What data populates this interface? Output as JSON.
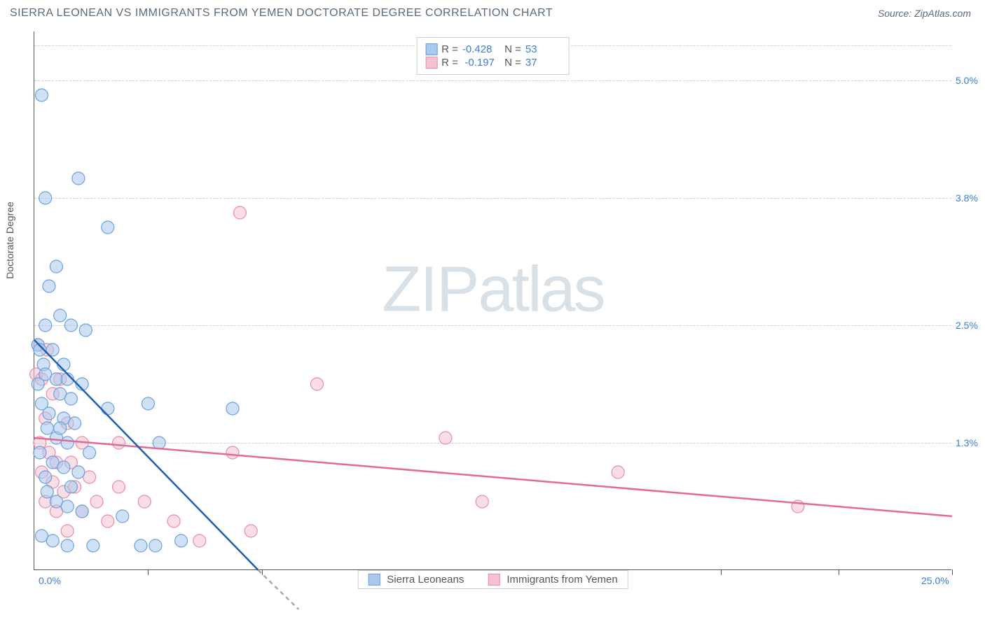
{
  "header": {
    "title": "SIERRA LEONEAN VS IMMIGRANTS FROM YEMEN DOCTORATE DEGREE CORRELATION CHART",
    "source": "Source: ZipAtlas.com"
  },
  "chart": {
    "type": "scatter",
    "ylabel": "Doctorate Degree",
    "watermark_prefix": "ZIP",
    "watermark_suffix": "atlas",
    "xlim": [
      0,
      25
    ],
    "ylim": [
      0,
      5.5
    ],
    "y_ticks": [
      {
        "v": 1.3,
        "label": "1.3%"
      },
      {
        "v": 2.5,
        "label": "2.5%"
      },
      {
        "v": 3.8,
        "label": "3.8%"
      },
      {
        "v": 5.0,
        "label": "5.0%"
      }
    ],
    "x_ticks_minor": [
      3.1,
      6.2,
      9.4,
      12.5,
      15.6,
      18.7,
      21.9,
      25.0
    ],
    "x_labels": [
      {
        "v": 0,
        "label": "0.0%"
      },
      {
        "v": 25,
        "label": "25.0%"
      }
    ],
    "background_color": "#ffffff",
    "grid_color": "#cfcfcf",
    "marker_radius": 9,
    "marker_opacity": 0.55,
    "line_width": 2.5,
    "series": [
      {
        "name": "Sierra Leoneans",
        "color_fill": "#a9c8ef",
        "color_stroke": "#6aa0de",
        "line_color": "#1c5fb3",
        "R": "-0.428",
        "N": "53",
        "trend": {
          "x1": 0,
          "y1": 2.35,
          "x2": 6.1,
          "y2": 0
        },
        "trend_ext": {
          "x1": 6.1,
          "y1": 0,
          "x2": 7.2,
          "y2": -0.4
        },
        "points": [
          [
            0.2,
            4.85
          ],
          [
            1.2,
            4.0
          ],
          [
            0.3,
            3.8
          ],
          [
            2.0,
            3.5
          ],
          [
            0.6,
            3.1
          ],
          [
            0.4,
            2.9
          ],
          [
            0.7,
            2.6
          ],
          [
            1.0,
            2.5
          ],
          [
            0.3,
            2.5
          ],
          [
            1.4,
            2.45
          ],
          [
            0.1,
            2.3
          ],
          [
            0.5,
            2.25
          ],
          [
            0.15,
            2.25
          ],
          [
            0.8,
            2.1
          ],
          [
            0.25,
            2.1
          ],
          [
            0.3,
            2.0
          ],
          [
            0.6,
            1.95
          ],
          [
            0.9,
            1.95
          ],
          [
            0.1,
            1.9
          ],
          [
            1.3,
            1.9
          ],
          [
            0.7,
            1.8
          ],
          [
            1.0,
            1.75
          ],
          [
            0.2,
            1.7
          ],
          [
            3.1,
            1.7
          ],
          [
            2.0,
            1.65
          ],
          [
            0.4,
            1.6
          ],
          [
            0.8,
            1.55
          ],
          [
            1.1,
            1.5
          ],
          [
            5.4,
            1.65
          ],
          [
            0.35,
            1.45
          ],
          [
            0.6,
            1.35
          ],
          [
            0.9,
            1.3
          ],
          [
            3.4,
            1.3
          ],
          [
            0.15,
            1.2
          ],
          [
            1.5,
            1.2
          ],
          [
            0.5,
            1.1
          ],
          [
            0.8,
            1.05
          ],
          [
            1.2,
            1.0
          ],
          [
            0.3,
            0.95
          ],
          [
            0.7,
            1.45
          ],
          [
            1.0,
            0.85
          ],
          [
            0.35,
            0.8
          ],
          [
            2.4,
            0.55
          ],
          [
            0.6,
            0.7
          ],
          [
            0.9,
            0.65
          ],
          [
            1.3,
            0.6
          ],
          [
            2.9,
            0.25
          ],
          [
            3.3,
            0.25
          ],
          [
            4.0,
            0.3
          ],
          [
            0.2,
            0.35
          ],
          [
            0.5,
            0.3
          ],
          [
            1.6,
            0.25
          ],
          [
            0.9,
            0.25
          ]
        ]
      },
      {
        "name": "Immigrants from Yemen",
        "color_fill": "#f4c2d2",
        "color_stroke": "#e98bab",
        "line_color": "#e36a95",
        "R": "-0.197",
        "N": "37",
        "trend": {
          "x1": 0,
          "y1": 1.35,
          "x2": 25,
          "y2": 0.55
        },
        "points": [
          [
            5.6,
            3.65
          ],
          [
            7.7,
            1.9
          ],
          [
            0.1,
            2.3
          ],
          [
            0.35,
            2.25
          ],
          [
            0.05,
            2.0
          ],
          [
            0.2,
            1.95
          ],
          [
            0.5,
            1.8
          ],
          [
            0.7,
            1.95
          ],
          [
            0.3,
            1.55
          ],
          [
            0.9,
            1.5
          ],
          [
            11.2,
            1.35
          ],
          [
            0.15,
            1.3
          ],
          [
            1.3,
            1.3
          ],
          [
            2.3,
            1.3
          ],
          [
            0.4,
            1.2
          ],
          [
            5.4,
            1.2
          ],
          [
            0.6,
            1.1
          ],
          [
            1.0,
            1.1
          ],
          [
            15.9,
            1.0
          ],
          [
            0.2,
            1.0
          ],
          [
            1.5,
            0.95
          ],
          [
            0.5,
            0.9
          ],
          [
            1.1,
            0.85
          ],
          [
            2.3,
            0.85
          ],
          [
            0.8,
            0.8
          ],
          [
            12.2,
            0.7
          ],
          [
            0.3,
            0.7
          ],
          [
            1.7,
            0.7
          ],
          [
            3.0,
            0.7
          ],
          [
            20.8,
            0.65
          ],
          [
            0.6,
            0.6
          ],
          [
            1.3,
            0.6
          ],
          [
            5.9,
            0.4
          ],
          [
            2.0,
            0.5
          ],
          [
            3.8,
            0.5
          ],
          [
            0.9,
            0.4
          ],
          [
            4.5,
            0.3
          ]
        ]
      }
    ]
  }
}
